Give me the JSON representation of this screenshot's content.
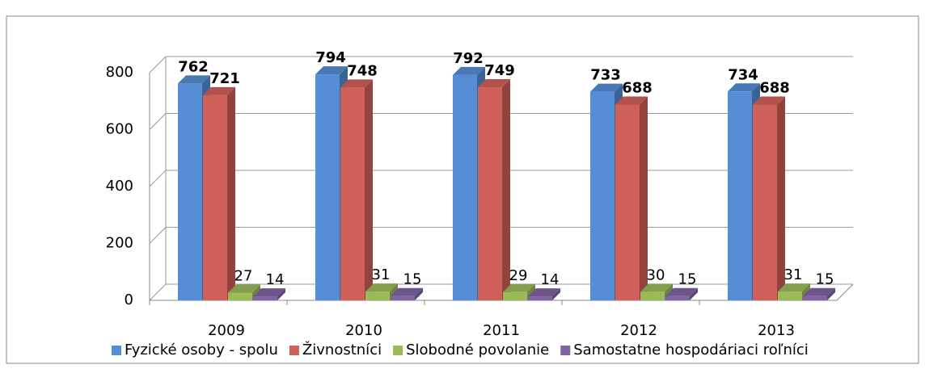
{
  "chart_data": {
    "type": "bar3d",
    "categories": [
      "2009",
      "2010",
      "2011",
      "2012",
      "2013"
    ],
    "series": [
      {
        "name": "Fyzické osoby - spolu",
        "color": "#558ed5",
        "values": [
          762,
          794,
          792,
          733,
          734
        ]
      },
      {
        "name": "Živnostníci",
        "color": "#d0605a",
        "values": [
          721,
          748,
          749,
          688,
          688
        ]
      },
      {
        "name": "Slobodné povolanie",
        "color": "#9bbb59",
        "values": [
          27,
          31,
          29,
          30,
          31
        ]
      },
      {
        "name": "Samostatne hospodáriaci roľníci",
        "color": "#8064a2",
        "values": [
          14,
          15,
          14,
          15,
          15
        ]
      }
    ],
    "ylim": [
      0,
      800
    ],
    "yticks": [
      0,
      200,
      400,
      600,
      800
    ],
    "grid": true,
    "legend": "bottom"
  }
}
